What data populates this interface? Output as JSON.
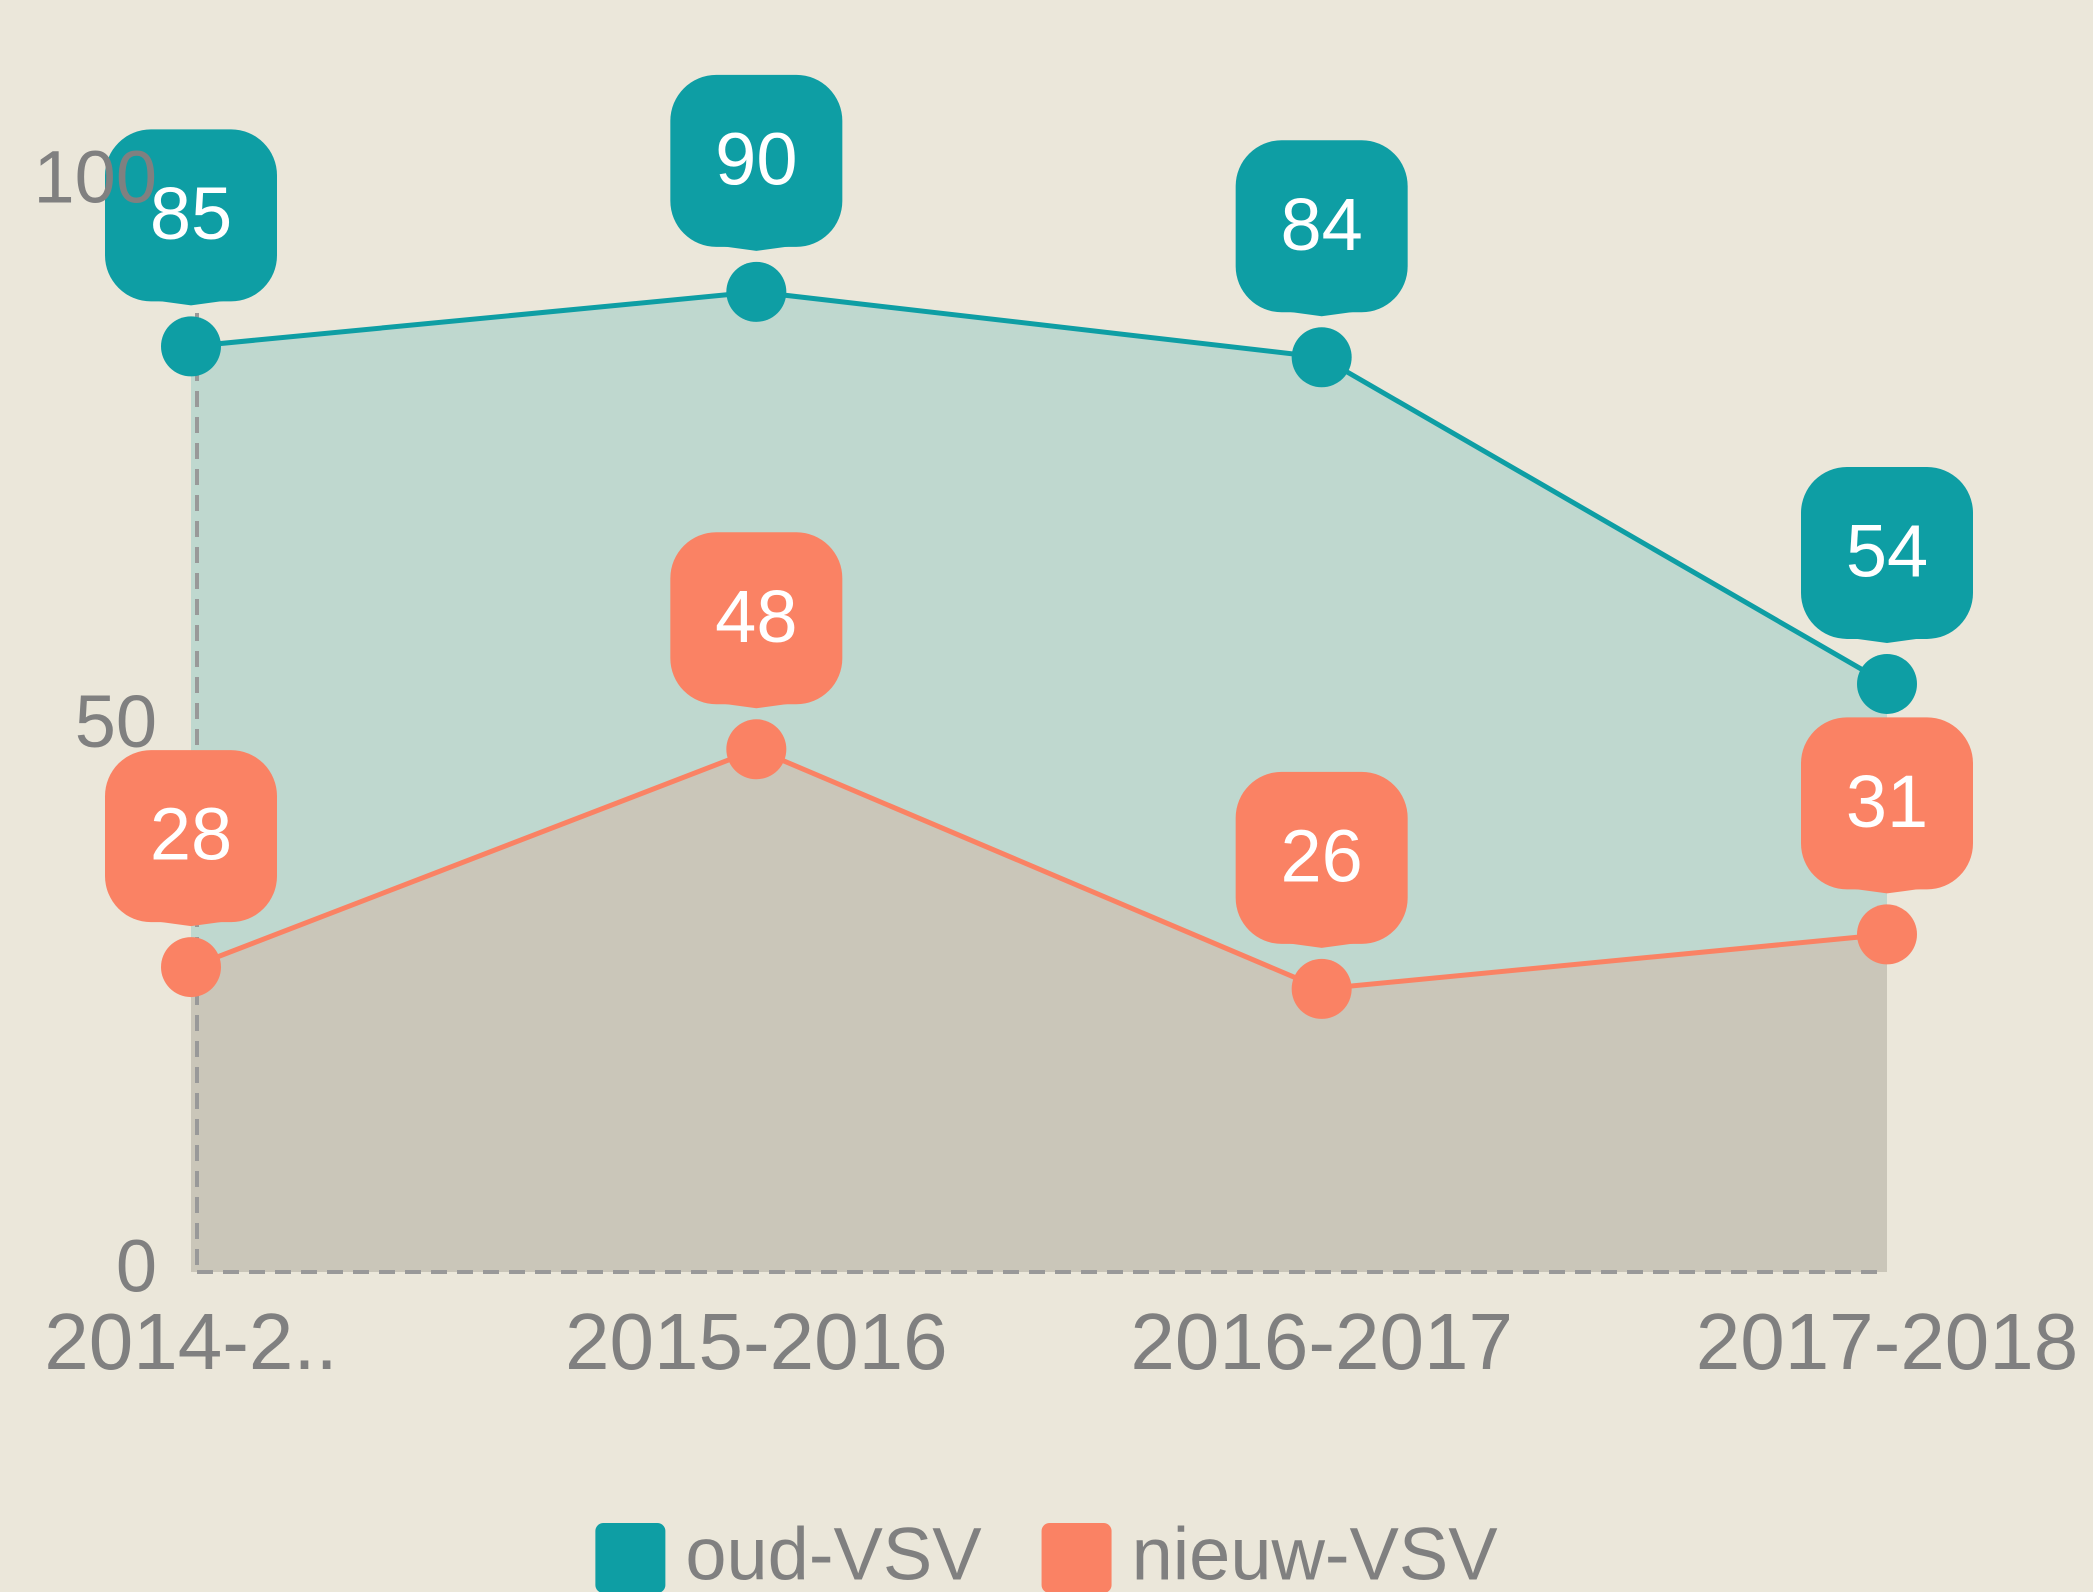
{
  "chart_data": {
    "type": "area",
    "categories": [
      "2014-2..",
      "2015-2016",
      "2016-2017",
      "2017-2018"
    ],
    "series": [
      {
        "name": "oud-VSV",
        "color": "#0e9ea4",
        "values": [
          85,
          90,
          84,
          54
        ]
      },
      {
        "name": "nieuw-VSV",
        "color": "#fa8264",
        "values": [
          28,
          48,
          26,
          31
        ]
      }
    ],
    "ylim": [
      0,
      100
    ],
    "yticks": [
      0,
      50,
      100
    ],
    "grid": false,
    "legend": "bottom"
  }
}
